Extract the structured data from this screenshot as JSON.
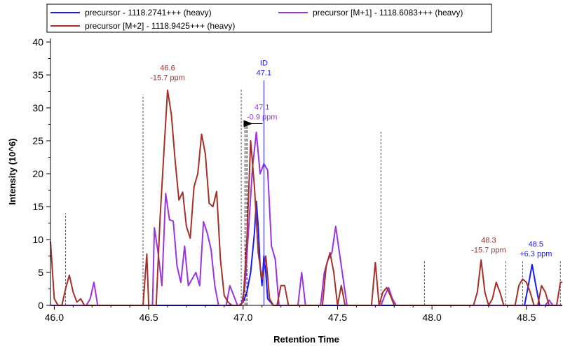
{
  "chart_data": {
    "type": "line",
    "xlabel": "Retention Time",
    "ylabel": "Intensity (10^6)",
    "xlim": [
      45.98,
      48.69
    ],
    "ylim": [
      0,
      40
    ],
    "x_ticks": [
      "46.0",
      "46.5",
      "47.0",
      "47.5",
      "48.0",
      "48.5"
    ],
    "y_ticks": [
      "0",
      "5",
      "10",
      "15",
      "20",
      "25",
      "30",
      "35",
      "40"
    ],
    "legend_position": "top",
    "grid": false,
    "series": [
      {
        "name": "precursor - 1118.2741+++ (heavy)",
        "color": "#1a1aff",
        "points": [
          [
            45.98,
            0
          ],
          [
            46.98,
            0
          ],
          [
            47.0,
            0.5
          ],
          [
            47.02,
            2
          ],
          [
            47.04,
            5
          ],
          [
            47.06,
            11
          ],
          [
            47.07,
            15.8
          ],
          [
            47.08,
            12
          ],
          [
            47.09,
            6
          ],
          [
            47.1,
            3
          ],
          [
            47.11,
            7.5
          ],
          [
            47.12,
            5
          ],
          [
            47.13,
            1
          ],
          [
            47.16,
            0
          ],
          [
            48.49,
            0
          ],
          [
            48.51,
            3
          ],
          [
            48.53,
            6.2
          ],
          [
            48.55,
            3
          ],
          [
            48.57,
            0
          ],
          [
            48.69,
            0
          ]
        ]
      },
      {
        "name": "precursor [M+1] - 1118.6083+++ (heavy)",
        "color": "#9a33e0",
        "points": [
          [
            45.98,
            0
          ],
          [
            46.17,
            0
          ],
          [
            46.19,
            1
          ],
          [
            46.21,
            3.5
          ],
          [
            46.23,
            0
          ],
          [
            46.52,
            0
          ],
          [
            46.53,
            11.8
          ],
          [
            46.55,
            8
          ],
          [
            46.57,
            3
          ],
          [
            46.59,
            17
          ],
          [
            46.61,
            13
          ],
          [
            46.63,
            12.8
          ],
          [
            46.65,
            6
          ],
          [
            46.67,
            3.5
          ],
          [
            46.69,
            9
          ],
          [
            46.71,
            3
          ],
          [
            46.73,
            4
          ],
          [
            46.75,
            5
          ],
          [
            46.77,
            3
          ],
          [
            46.79,
            12.7
          ],
          [
            46.81,
            11
          ],
          [
            46.83,
            8.5
          ],
          [
            46.85,
            3
          ],
          [
            46.87,
            0
          ],
          [
            46.91,
            0
          ],
          [
            46.93,
            3
          ],
          [
            46.95,
            1.5
          ],
          [
            46.97,
            0
          ],
          [
            46.99,
            0
          ],
          [
            47.01,
            3
          ],
          [
            47.03,
            12
          ],
          [
            47.05,
            21
          ],
          [
            47.07,
            26.3
          ],
          [
            47.09,
            20
          ],
          [
            47.11,
            21.5
          ],
          [
            47.13,
            20.5
          ],
          [
            47.15,
            9
          ],
          [
            47.17,
            7
          ],
          [
            47.19,
            0
          ],
          [
            47.29,
            0
          ],
          [
            47.31,
            5
          ],
          [
            47.33,
            0
          ],
          [
            47.41,
            0
          ],
          [
            47.43,
            5
          ],
          [
            47.45,
            7
          ],
          [
            47.47,
            8
          ],
          [
            47.49,
            12
          ],
          [
            47.51,
            8
          ],
          [
            47.53,
            4
          ],
          [
            47.55,
            0
          ],
          [
            47.73,
            0
          ],
          [
            47.75,
            1.5
          ],
          [
            47.77,
            2.7
          ],
          [
            47.79,
            1
          ],
          [
            47.81,
            0
          ],
          [
            48.6,
            0
          ],
          [
            48.62,
            0.8
          ],
          [
            48.64,
            0
          ],
          [
            48.69,
            0
          ]
        ]
      },
      {
        "name": "precursor [M+2] - 1118.9425+++ (heavy)",
        "color": "#a3312a",
        "points": [
          [
            45.98,
            9.7
          ],
          [
            46.0,
            1
          ],
          [
            46.02,
            0
          ],
          [
            46.04,
            0
          ],
          [
            46.06,
            2.5
          ],
          [
            46.08,
            4.6
          ],
          [
            46.1,
            2
          ],
          [
            46.12,
            0.5
          ],
          [
            46.14,
            1
          ],
          [
            46.16,
            0
          ],
          [
            46.47,
            0
          ],
          [
            46.49,
            7.8
          ],
          [
            46.5,
            0
          ],
          [
            46.54,
            0
          ],
          [
            46.56,
            13
          ],
          [
            46.58,
            23
          ],
          [
            46.6,
            32.7
          ],
          [
            46.62,
            29
          ],
          [
            46.64,
            22
          ],
          [
            46.66,
            16
          ],
          [
            46.68,
            17.2
          ],
          [
            46.7,
            12
          ],
          [
            46.72,
            10.2
          ],
          [
            46.74,
            18
          ],
          [
            46.76,
            20
          ],
          [
            46.78,
            26
          ],
          [
            46.8,
            23
          ],
          [
            46.82,
            15.5
          ],
          [
            46.84,
            15
          ],
          [
            46.86,
            17.3
          ],
          [
            46.88,
            7
          ],
          [
            46.9,
            1.5
          ],
          [
            46.92,
            0.5
          ],
          [
            46.94,
            0
          ],
          [
            46.98,
            0
          ],
          [
            47.0,
            0.5
          ],
          [
            47.02,
            10
          ],
          [
            47.04,
            25
          ],
          [
            47.06,
            18
          ],
          [
            47.08,
            8
          ],
          [
            47.1,
            4
          ],
          [
            47.12,
            7.5
          ],
          [
            47.14,
            1
          ],
          [
            47.16,
            0
          ],
          [
            47.18,
            0
          ],
          [
            47.2,
            3
          ],
          [
            47.22,
            3
          ],
          [
            47.24,
            0
          ],
          [
            47.42,
            0
          ],
          [
            47.44,
            6
          ],
          [
            47.46,
            8
          ],
          [
            47.48,
            5
          ],
          [
            47.5,
            0
          ],
          [
            47.52,
            3
          ],
          [
            47.54,
            0
          ],
          [
            47.68,
            0
          ],
          [
            47.7,
            6.5
          ],
          [
            47.72,
            0
          ],
          [
            47.74,
            2
          ],
          [
            47.76,
            2.7
          ],
          [
            47.78,
            1.5
          ],
          [
            47.8,
            0
          ],
          [
            48.22,
            0
          ],
          [
            48.24,
            2
          ],
          [
            48.26,
            6.9
          ],
          [
            48.28,
            2
          ],
          [
            48.3,
            0
          ],
          [
            48.32,
            1
          ],
          [
            48.34,
            3.5
          ],
          [
            48.36,
            2
          ],
          [
            48.38,
            0
          ],
          [
            48.44,
            0
          ],
          [
            48.46,
            3
          ],
          [
            48.48,
            4
          ],
          [
            48.5,
            3.5
          ],
          [
            48.52,
            2
          ],
          [
            48.54,
            0
          ],
          [
            48.56,
            0
          ],
          [
            48.58,
            3
          ],
          [
            48.6,
            2
          ],
          [
            48.62,
            0
          ],
          [
            48.66,
            0
          ],
          [
            48.68,
            3.5
          ],
          [
            48.69,
            3.5
          ]
        ]
      }
    ],
    "peak_boundaries": [
      {
        "x": 46.06,
        "top": 14
      },
      {
        "x": 46.47,
        "top": 32
      },
      {
        "x": 46.99,
        "top": 33
      },
      {
        "x": 47.73,
        "top": 26.5
      },
      {
        "x": 47.96,
        "top": 6.9
      },
      {
        "x": 48.39,
        "top": 6.9
      },
      {
        "x": 48.48,
        "top": 6.9
      },
      {
        "x": 48.68,
        "top": 6.9
      }
    ],
    "integration_boundaries": [
      {
        "x": 47.01,
        "top": 27.6
      },
      {
        "x": 47.02,
        "top": 27.6
      }
    ],
    "id_marker": {
      "x": 47.11,
      "top": 34.2,
      "label": "ID",
      "value": "47.1",
      "color": "#1a1aff"
    },
    "annotations": [
      {
        "x": 46.6,
        "y": 33.8,
        "lines": [
          "46.6",
          "-15.7 ppm"
        ],
        "color": "#a3312a"
      },
      {
        "x": 47.1,
        "y": 27.8,
        "lines": [
          "47.1",
          "-0.9 ppm"
        ],
        "color": "#9a33e0"
      },
      {
        "x": 48.3,
        "y": 7.6,
        "lines": [
          "48.3",
          "-15.7 ppm"
        ],
        "color": "#a3312a"
      },
      {
        "x": 48.55,
        "y": 7.0,
        "lines": [
          "48.5",
          "+6.3 ppm"
        ],
        "color": "#1a1aff"
      }
    ]
  }
}
